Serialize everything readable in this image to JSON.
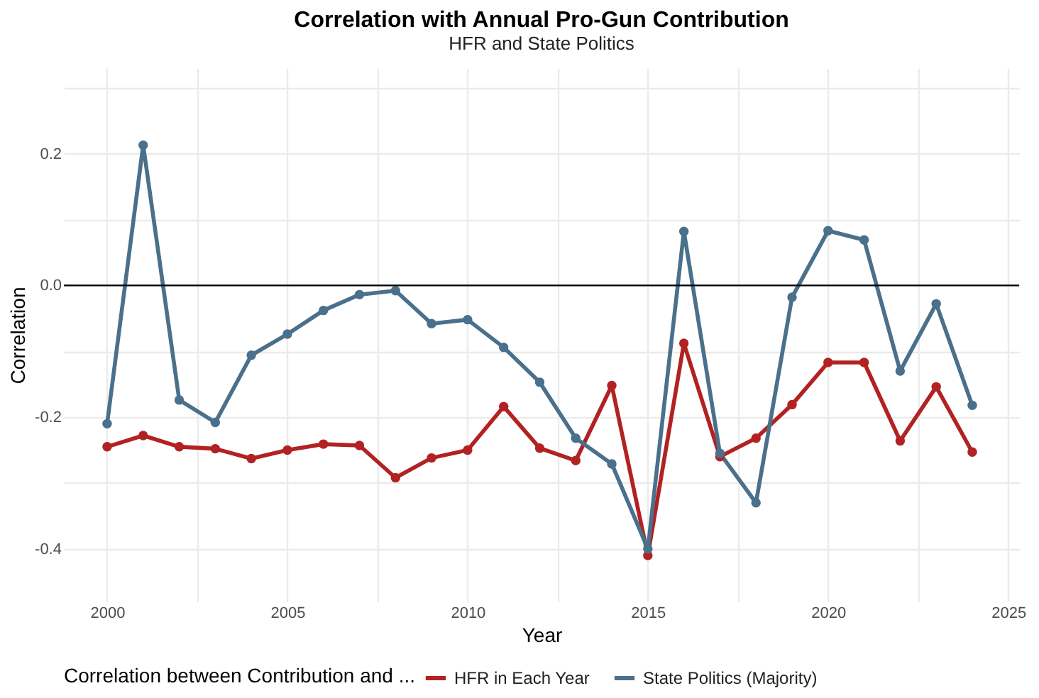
{
  "chart_data": {
    "type": "line",
    "title": "Correlation with Annual Pro-Gun Contribution",
    "subtitle": "HFR and State Politics",
    "xlabel": "Year",
    "ylabel": "Correlation",
    "legend_title": "Correlation between Contribution and ...",
    "legend": "bottom",
    "grid": true,
    "marker": "circle",
    "line_style": "solid",
    "x": [
      2000,
      2001,
      2002,
      2003,
      2004,
      2005,
      2006,
      2007,
      2008,
      2009,
      2010,
      2011,
      2012,
      2013,
      2014,
      2015,
      2016,
      2017,
      2018,
      2019,
      2020,
      2021,
      2022,
      2023,
      2024
    ],
    "series": [
      {
        "name": "HFR in Each Year",
        "color": "#b22222",
        "values": [
          -0.245,
          -0.228,
          -0.245,
          -0.248,
          -0.263,
          -0.25,
          -0.241,
          -0.243,
          -0.292,
          -0.262,
          -0.25,
          -0.184,
          -0.247,
          -0.266,
          -0.152,
          -0.41,
          -0.088,
          -0.26,
          -0.232,
          -0.181,
          -0.117,
          -0.117,
          -0.236,
          -0.154,
          -0.253
        ]
      },
      {
        "name": "State Politics (Majority)",
        "color": "#4a708b",
        "values": [
          -0.21,
          0.213,
          -0.174,
          -0.208,
          -0.106,
          -0.074,
          -0.038,
          -0.014,
          -0.008,
          -0.058,
          -0.052,
          -0.094,
          -0.147,
          -0.232,
          -0.271,
          -0.4,
          0.082,
          -0.255,
          -0.33,
          -0.018,
          0.083,
          0.069,
          -0.13,
          -0.028,
          -0.182
        ]
      }
    ],
    "xlim": [
      1998.8,
      2025.3
    ],
    "xticks": [
      2000,
      {
        "value": 2002.5,
        "label": null
      },
      2005,
      {
        "value": 2007.5,
        "label": null
      },
      2010,
      {
        "value": 2012.5,
        "label": null
      },
      2015,
      {
        "value": 2017.5,
        "label": null
      },
      2020,
      {
        "value": 2022.5,
        "label": null
      },
      2025
    ],
    "ylim": [
      -0.48,
      0.33
    ],
    "yticks": [
      {
        "value": -0.4,
        "label": "-0.4"
      },
      {
        "value": -0.3,
        "label": null
      },
      {
        "value": -0.2,
        "label": "-0.2"
      },
      {
        "value": -0.1,
        "label": null
      },
      {
        "value": 0,
        "label": "0.0"
      },
      {
        "value": 0.1,
        "label": null
      },
      {
        "value": 0.2,
        "label": "0.2"
      },
      {
        "value": 0.3,
        "label": null
      }
    ],
    "ref_lines": [
      {
        "axis": "y",
        "value": 0,
        "color": "#000000"
      }
    ]
  }
}
